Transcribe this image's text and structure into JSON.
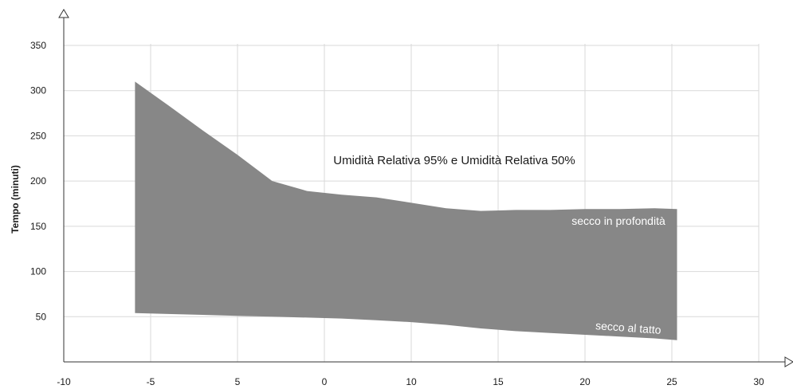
{
  "chart_data": {
    "type": "area",
    "title": "",
    "xlabel": "",
    "ylabel": "Tempo (minuti)",
    "xlim": [
      -10,
      30
    ],
    "ylim": [
      0,
      350
    ],
    "x_ticks": [
      "-10",
      "-5",
      "5",
      "0",
      "10",
      "15",
      "20",
      "25",
      "30"
    ],
    "y_ticks": [
      "50",
      "100",
      "150",
      "200",
      "250",
      "300",
      "350"
    ],
    "grid": true,
    "band_color": "#878787",
    "annotations": {
      "band_label": "Umidità Relativa 95% e Umidità Relativa 50%",
      "upper_label": "secco in profondità",
      "lower_label": "secco al tatto"
    },
    "series": [
      {
        "name": "secco in profondità",
        "x": [
          -5.9,
          -4,
          -2,
          0,
          2,
          4,
          6,
          8,
          10,
          12,
          14,
          16,
          18,
          20,
          22,
          24,
          25.3
        ],
        "values": [
          310,
          284,
          256,
          229,
          200,
          189,
          185,
          182,
          176,
          170,
          167,
          168,
          168,
          169,
          169,
          170,
          169
        ]
      },
      {
        "name": "secco al tatto",
        "x": [
          -5.9,
          -4,
          -2,
          0,
          2,
          4,
          6,
          8,
          10,
          12,
          14,
          16,
          18,
          20,
          22,
          24,
          25.3
        ],
        "values": [
          54,
          53,
          52,
          51,
          50,
          49,
          48,
          46,
          44,
          41,
          37,
          34,
          32,
          30,
          28,
          26,
          24
        ]
      }
    ]
  }
}
